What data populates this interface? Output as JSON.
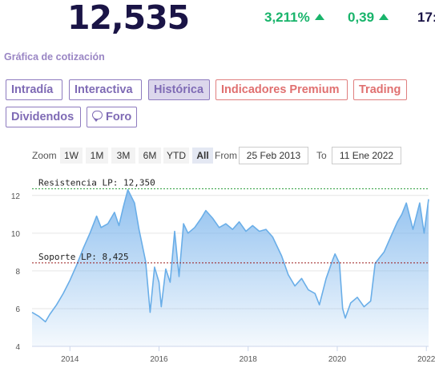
{
  "header": {
    "price": "12,535",
    "change_percent": "3,211%",
    "change_abs": "0,39",
    "time_partial": "17:"
  },
  "section_title": "Gráfica de cotización",
  "tabs": [
    {
      "label": "Intradía"
    },
    {
      "label": "Interactiva"
    },
    {
      "label": "Histórica"
    },
    {
      "label": "Indicadores Premium"
    },
    {
      "label": "Trading"
    },
    {
      "label": "Dividendos"
    },
    {
      "label": "Foro"
    }
  ],
  "range_selector": {
    "zoom_label": "Zoom",
    "buttons": [
      "1W",
      "1M",
      "3M",
      "6M",
      "YTD",
      "All"
    ],
    "from_label": "From",
    "from_value": "25 Feb 2013",
    "to_label": "To",
    "to_value": "11 Ene 2022"
  },
  "colors": {
    "positive": "#19b46b",
    "line": "#6aaee8",
    "resistance": "#2e9e3e",
    "support": "#9b1c1c"
  },
  "chart_data": {
    "type": "area",
    "xlabel": "",
    "ylabel": "",
    "xlim": [
      2013.15,
      2022.05
    ],
    "ylim": [
      4,
      12.5
    ],
    "x_ticks": [
      2014,
      2016,
      2018,
      2020,
      2022
    ],
    "y_ticks": [
      4,
      6,
      8,
      10,
      12
    ],
    "grid": true,
    "reference_lines": [
      {
        "label": "Resistencia LP: 12,350",
        "value": 12.35
      },
      {
        "label": "Soporte LP: 8,425",
        "value": 8.425
      }
    ],
    "x": [
      2013.15,
      2013.3,
      2013.45,
      2013.55,
      2013.7,
      2013.85,
      2014.0,
      2014.15,
      2014.3,
      2014.45,
      2014.6,
      2014.7,
      2014.85,
      2015.0,
      2015.1,
      2015.2,
      2015.3,
      2015.45,
      2015.55,
      2015.7,
      2015.8,
      2015.9,
      2016.0,
      2016.05,
      2016.15,
      2016.25,
      2016.35,
      2016.45,
      2016.55,
      2016.65,
      2016.8,
      2016.95,
      2017.05,
      2017.2,
      2017.35,
      2017.5,
      2017.65,
      2017.8,
      2017.95,
      2018.1,
      2018.25,
      2018.4,
      2018.55,
      2018.75,
      2018.9,
      2019.05,
      2019.2,
      2019.35,
      2019.5,
      2019.6,
      2019.75,
      2019.9,
      2019.95,
      2020.05,
      2020.12,
      2020.18,
      2020.3,
      2020.45,
      2020.6,
      2020.75,
      2020.85,
      2020.95,
      2021.05,
      2021.2,
      2021.35,
      2021.45,
      2021.55,
      2021.7,
      2021.85,
      2021.95,
      2022.05
    ],
    "y": [
      5.8,
      5.6,
      5.3,
      5.7,
      6.2,
      6.8,
      7.5,
      8.3,
      9.2,
      10.0,
      10.9,
      10.3,
      10.5,
      11.1,
      10.4,
      11.4,
      12.3,
      11.6,
      10.2,
      8.5,
      5.8,
      8.2,
      7.4,
      6.1,
      8.1,
      7.4,
      10.1,
      7.7,
      10.5,
      10.0,
      10.3,
      10.8,
      11.2,
      10.8,
      10.3,
      10.5,
      10.2,
      10.6,
      10.1,
      10.4,
      10.1,
      10.2,
      9.8,
      8.8,
      7.8,
      7.2,
      7.6,
      7.0,
      6.8,
      6.2,
      7.6,
      8.6,
      8.9,
      8.4,
      6.0,
      5.5,
      6.3,
      6.6,
      6.1,
      6.4,
      8.4,
      8.7,
      9.0,
      9.8,
      10.6,
      11.0,
      11.6,
      10.2,
      11.6,
      10.0,
      11.8
    ]
  }
}
